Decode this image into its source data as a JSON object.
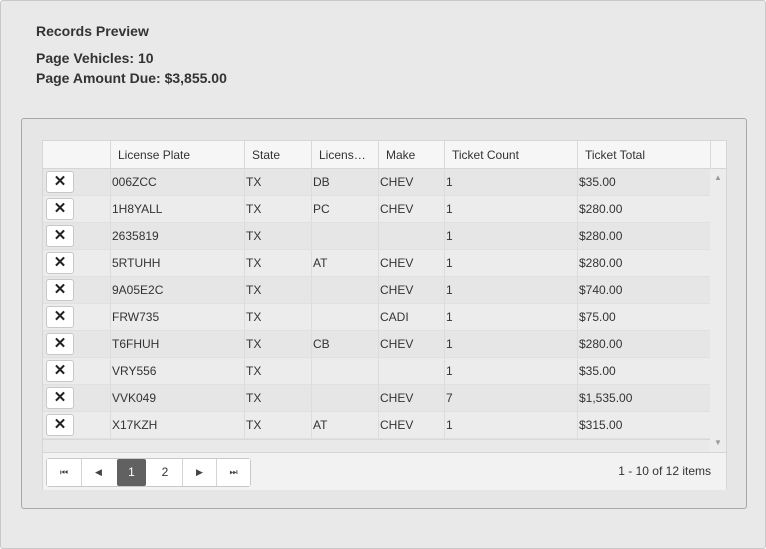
{
  "summary": {
    "title": "Records Preview",
    "vehicles": "Page Vehicles: 10",
    "amount": "Page Amount Due: $3,855.00"
  },
  "grid": {
    "columns": [
      "",
      "License Plate",
      "State",
      "Licens…",
      "Make",
      "Ticket Count",
      "Ticket Total"
    ],
    "rows": [
      {
        "plate": "006ZCC",
        "state": "TX",
        "license": "DB",
        "make": "CHEV",
        "count": "1",
        "total": "$35.00"
      },
      {
        "plate": "1H8YALL",
        "state": "TX",
        "license": "PC",
        "make": "CHEV",
        "count": "1",
        "total": "$280.00"
      },
      {
        "plate": "2635819",
        "state": "TX",
        "license": "",
        "make": "",
        "count": "1",
        "total": "$280.00"
      },
      {
        "plate": "5RTUHH",
        "state": "TX",
        "license": "AT",
        "make": "CHEV",
        "count": "1",
        "total": "$280.00"
      },
      {
        "plate": "9A05E2C",
        "state": "TX",
        "license": "",
        "make": "CHEV",
        "count": "1",
        "total": "$740.00"
      },
      {
        "plate": "FRW735",
        "state": "TX",
        "license": "",
        "make": "CADI",
        "count": "1",
        "total": "$75.00"
      },
      {
        "plate": "T6FHUH",
        "state": "TX",
        "license": "CB",
        "make": "CHEV",
        "count": "1",
        "total": "$280.00"
      },
      {
        "plate": "VRY556",
        "state": "TX",
        "license": "",
        "make": "",
        "count": "1",
        "total": "$35.00"
      },
      {
        "plate": "VVK049",
        "state": "TX",
        "license": "",
        "make": "CHEV",
        "count": "7",
        "total": "$1,535.00"
      },
      {
        "plate": "X17KZH",
        "state": "TX",
        "license": "AT",
        "make": "CHEV",
        "count": "1",
        "total": "$315.00"
      }
    ],
    "remove_glyph": "✕"
  },
  "pager": {
    "first": "⏮",
    "prev": "◀",
    "pages": [
      "1",
      "2"
    ],
    "current_page": "1",
    "next": "▶",
    "last": "⏭",
    "info": "1 - 10 of 12 items"
  },
  "icons": {
    "scroll_up": "▲",
    "scroll_down": "▼"
  }
}
